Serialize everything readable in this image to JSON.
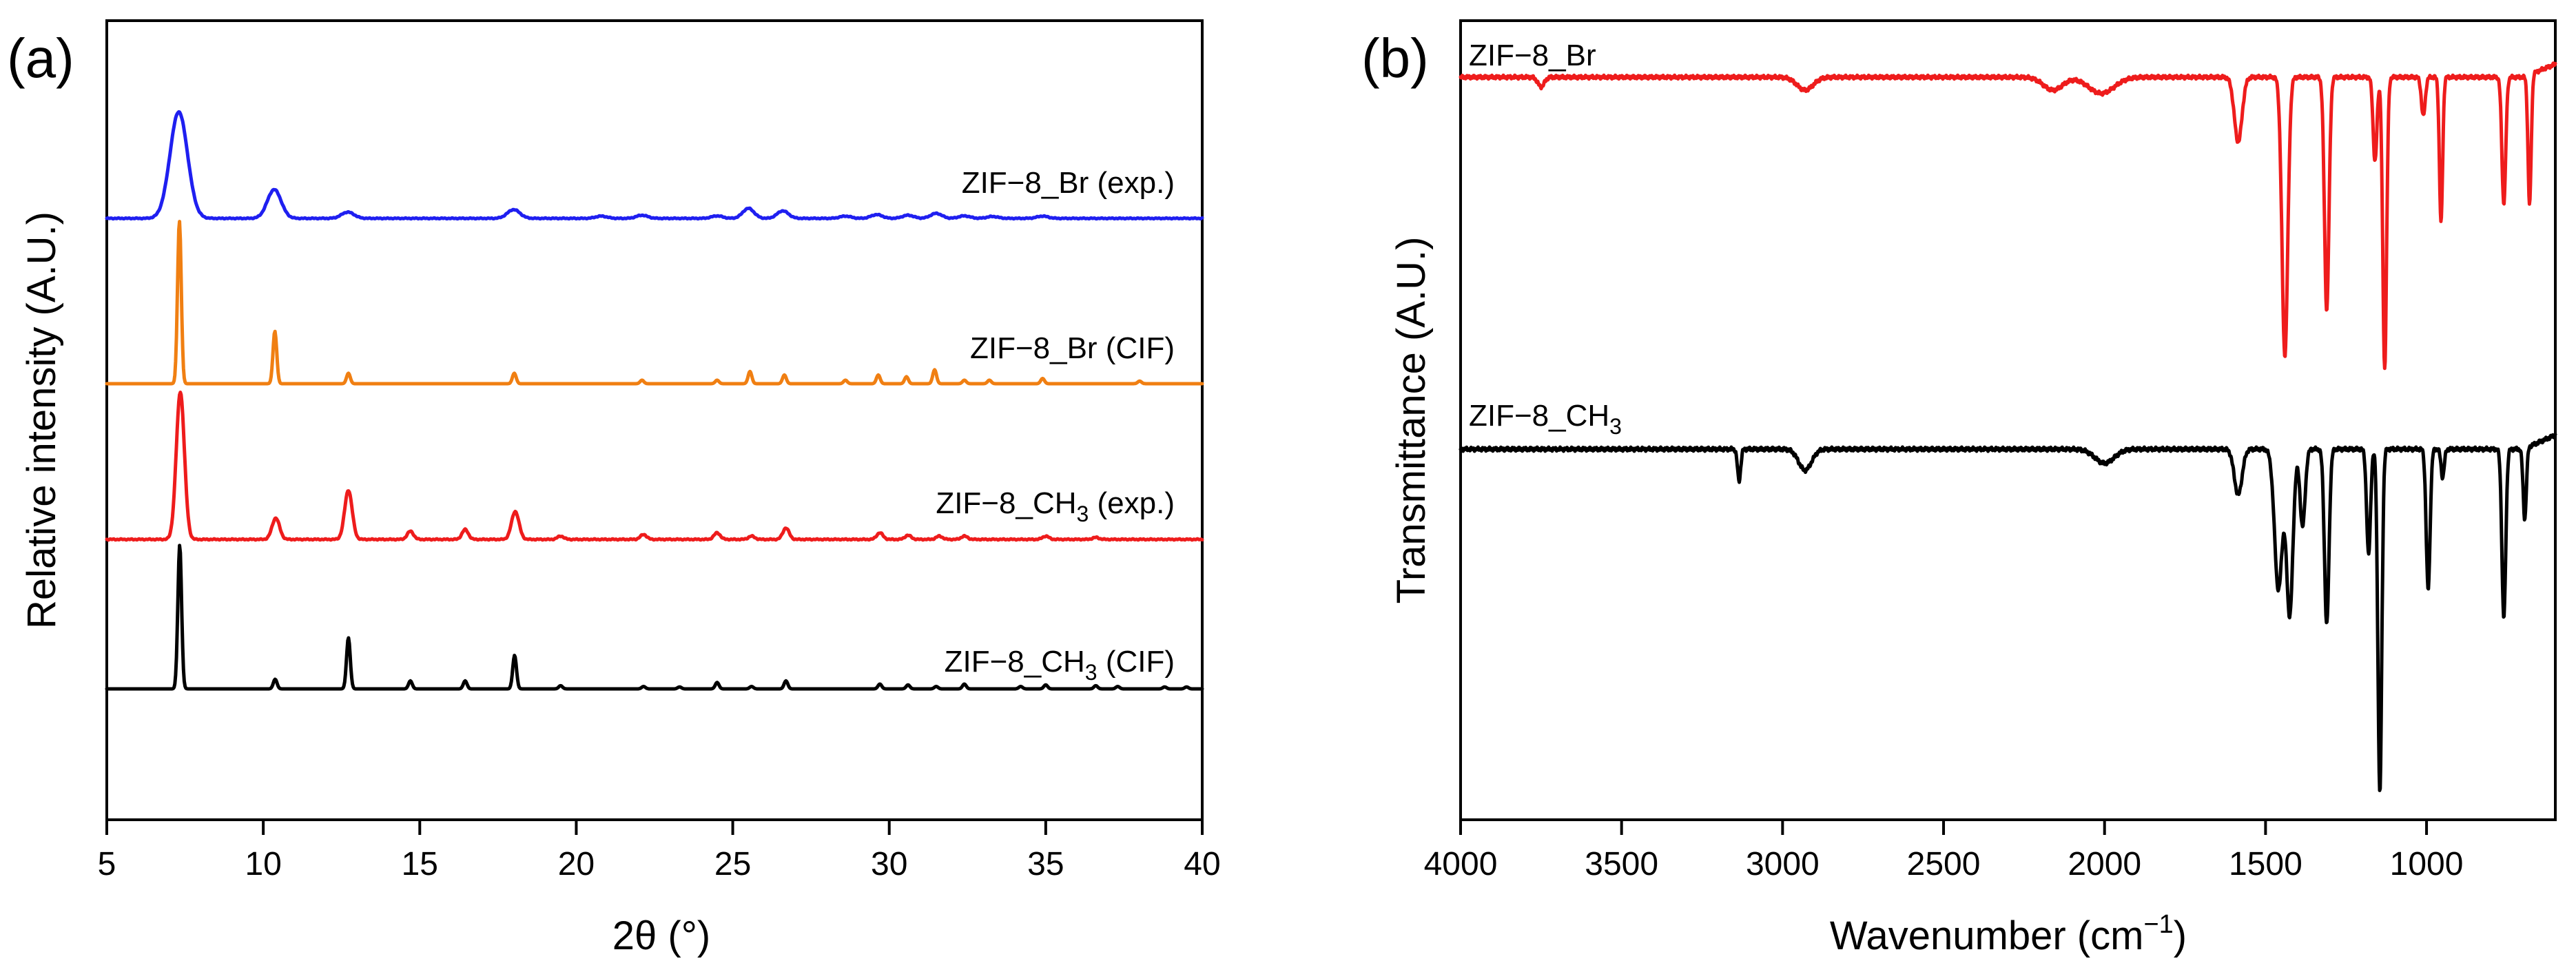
{
  "chart_data": [
    {
      "type": "line",
      "panel_label": "(a)",
      "xlabel_symbol": "2θ",
      "xlabel_unit": "(°)",
      "ylabel": "Relative intensity (A.U.)",
      "xlim": [
        5,
        40
      ],
      "x_ticks": [
        5,
        10,
        15,
        20,
        25,
        30,
        35,
        40
      ],
      "y_ticks_shown": false,
      "series": [
        {
          "name": "ZIF-8_Br (exp.)",
          "label_base": "ZIF−8_Br (exp.)",
          "label_sub": "",
          "label_tail": "",
          "color": "#1f1ff0",
          "offset": 3.0,
          "baseline": 0.0,
          "peaks": [
            {
              "x": 7.3,
              "h": 0.85,
              "w": 0.28
            },
            {
              "x": 10.35,
              "h": 0.23,
              "w": 0.22
            },
            {
              "x": 12.7,
              "h": 0.05,
              "w": 0.2
            },
            {
              "x": 18.0,
              "h": 0.07,
              "w": 0.2
            },
            {
              "x": 20.8,
              "h": 0.018,
              "w": 0.18
            },
            {
              "x": 22.1,
              "h": 0.025,
              "w": 0.18
            },
            {
              "x": 24.5,
              "h": 0.02,
              "w": 0.18
            },
            {
              "x": 25.5,
              "h": 0.08,
              "w": 0.18
            },
            {
              "x": 26.6,
              "h": 0.06,
              "w": 0.18
            },
            {
              "x": 28.6,
              "h": 0.018,
              "w": 0.18
            },
            {
              "x": 29.6,
              "h": 0.03,
              "w": 0.18
            },
            {
              "x": 30.6,
              "h": 0.025,
              "w": 0.18
            },
            {
              "x": 31.5,
              "h": 0.04,
              "w": 0.18
            },
            {
              "x": 32.4,
              "h": 0.02,
              "w": 0.18
            },
            {
              "x": 33.3,
              "h": 0.015,
              "w": 0.18
            },
            {
              "x": 34.9,
              "h": 0.018,
              "w": 0.18
            }
          ]
        },
        {
          "name": "ZIF-8_Br (CIF)",
          "label_base": "ZIF−8_Br (CIF)",
          "label_sub": "",
          "label_tail": "",
          "color": "#f07f12",
          "offset": 2.0,
          "baseline": 0.0,
          "peaks": [
            {
              "x": 7.32,
              "h": 0.93,
              "w": 0.06
            },
            {
              "x": 10.37,
              "h": 0.3,
              "w": 0.06
            },
            {
              "x": 12.72,
              "h": 0.06,
              "w": 0.06
            },
            {
              "x": 18.02,
              "h": 0.06,
              "w": 0.06
            },
            {
              "x": 22.1,
              "h": 0.02,
              "w": 0.06
            },
            {
              "x": 24.5,
              "h": 0.02,
              "w": 0.06
            },
            {
              "x": 25.55,
              "h": 0.07,
              "w": 0.06
            },
            {
              "x": 26.65,
              "h": 0.05,
              "w": 0.06
            },
            {
              "x": 28.6,
              "h": 0.02,
              "w": 0.06
            },
            {
              "x": 29.65,
              "h": 0.05,
              "w": 0.06
            },
            {
              "x": 30.55,
              "h": 0.04,
              "w": 0.06
            },
            {
              "x": 31.45,
              "h": 0.08,
              "w": 0.06
            },
            {
              "x": 32.4,
              "h": 0.02,
              "w": 0.06
            },
            {
              "x": 33.2,
              "h": 0.02,
              "w": 0.06
            },
            {
              "x": 34.9,
              "h": 0.03,
              "w": 0.06
            },
            {
              "x": 38.0,
              "h": 0.015,
              "w": 0.06
            }
          ]
        },
        {
          "name": "ZIF-8_CH3 (exp.)",
          "label_base": "ZIF−8_CH",
          "label_sub": "3",
          "label_tail": " (exp.)",
          "color": "#ee1c1c",
          "offset": 1.0,
          "baseline": 0.0,
          "peaks": [
            {
              "x": 7.35,
              "h": 0.9,
              "w": 0.13
            },
            {
              "x": 10.4,
              "h": 0.13,
              "w": 0.12
            },
            {
              "x": 12.72,
              "h": 0.3,
              "w": 0.12
            },
            {
              "x": 14.7,
              "h": 0.05,
              "w": 0.1
            },
            {
              "x": 16.45,
              "h": 0.06,
              "w": 0.1
            },
            {
              "x": 18.05,
              "h": 0.17,
              "w": 0.12
            },
            {
              "x": 19.5,
              "h": 0.02,
              "w": 0.1
            },
            {
              "x": 22.15,
              "h": 0.03,
              "w": 0.1
            },
            {
              "x": 24.5,
              "h": 0.04,
              "w": 0.1
            },
            {
              "x": 25.6,
              "h": 0.02,
              "w": 0.1
            },
            {
              "x": 26.7,
              "h": 0.07,
              "w": 0.1
            },
            {
              "x": 29.7,
              "h": 0.04,
              "w": 0.1
            },
            {
              "x": 30.6,
              "h": 0.025,
              "w": 0.1
            },
            {
              "x": 31.6,
              "h": 0.02,
              "w": 0.1
            },
            {
              "x": 32.4,
              "h": 0.02,
              "w": 0.1
            },
            {
              "x": 35.0,
              "h": 0.02,
              "w": 0.1
            },
            {
              "x": 36.6,
              "h": 0.012,
              "w": 0.1
            }
          ]
        },
        {
          "name": "ZIF-8_CH3 (CIF)",
          "label_base": "ZIF−8_CH",
          "label_sub": "3",
          "label_tail": " (CIF)",
          "color": "#000000",
          "offset": 0.0,
          "baseline": 0.0,
          "peaks": [
            {
              "x": 7.33,
              "h": 0.9,
              "w": 0.06
            },
            {
              "x": 10.38,
              "h": 0.06,
              "w": 0.06
            },
            {
              "x": 12.72,
              "h": 0.32,
              "w": 0.06
            },
            {
              "x": 14.7,
              "h": 0.05,
              "w": 0.06
            },
            {
              "x": 16.45,
              "h": 0.05,
              "w": 0.06
            },
            {
              "x": 18.03,
              "h": 0.21,
              "w": 0.06
            },
            {
              "x": 19.5,
              "h": 0.02,
              "w": 0.06
            },
            {
              "x": 22.15,
              "h": 0.015,
              "w": 0.06
            },
            {
              "x": 23.3,
              "h": 0.012,
              "w": 0.06
            },
            {
              "x": 24.5,
              "h": 0.04,
              "w": 0.06
            },
            {
              "x": 25.6,
              "h": 0.015,
              "w": 0.06
            },
            {
              "x": 26.7,
              "h": 0.05,
              "w": 0.06
            },
            {
              "x": 29.7,
              "h": 0.03,
              "w": 0.06
            },
            {
              "x": 30.6,
              "h": 0.025,
              "w": 0.06
            },
            {
              "x": 31.5,
              "h": 0.015,
              "w": 0.06
            },
            {
              "x": 32.4,
              "h": 0.03,
              "w": 0.06
            },
            {
              "x": 34.2,
              "h": 0.015,
              "w": 0.06
            },
            {
              "x": 35.0,
              "h": 0.025,
              "w": 0.06
            },
            {
              "x": 36.6,
              "h": 0.02,
              "w": 0.06
            },
            {
              "x": 37.3,
              "h": 0.015,
              "w": 0.06
            },
            {
              "x": 38.8,
              "h": 0.012,
              "w": 0.06
            },
            {
              "x": 39.5,
              "h": 0.012,
              "w": 0.06
            }
          ]
        }
      ]
    },
    {
      "type": "line",
      "panel_label": "(b)",
      "xlabel_main": "Wavenumber (cm",
      "xlabel_sup": "−1",
      "xlabel_tail": ")",
      "ylabel": "Transmittance (A.U.)",
      "xlim": [
        4000,
        600
      ],
      "x_ticks": [
        4000,
        3500,
        3000,
        2500,
        2000,
        1500,
        1000
      ],
      "y_ticks_shown": false,
      "series": [
        {
          "name": "ZIF-8_Br",
          "label_base": "ZIF−8_Br",
          "label_sub": "",
          "label_tail": "",
          "color": "#ee1c1c",
          "offset": 1.0,
          "baseline": 0.0,
          "peaks": [
            {
              "x": 3750,
              "d": 0.03,
              "w": 10
            },
            {
              "x": 2930,
              "d": 0.04,
              "w": 25
            },
            {
              "x": 2160,
              "d": 0.04,
              "w": 30
            },
            {
              "x": 2010,
              "d": 0.05,
              "w": 40
            },
            {
              "x": 1585,
              "d": 0.2,
              "w": 12
            },
            {
              "x": 1440,
              "d": 0.86,
              "w": 9
            },
            {
              "x": 1310,
              "d": 0.72,
              "w": 7
            },
            {
              "x": 1160,
              "d": 0.26,
              "w": 6
            },
            {
              "x": 1130,
              "d": 0.9,
              "w": 6
            },
            {
              "x": 1010,
              "d": 0.12,
              "w": 6
            },
            {
              "x": 955,
              "d": 0.45,
              "w": 5
            },
            {
              "x": 760,
              "d": 0.39,
              "w": 6
            },
            {
              "x": 680,
              "d": 0.4,
              "w": 5
            }
          ]
        },
        {
          "name": "ZIF-8_CH3",
          "label_base": "ZIF−8_CH",
          "label_sub": "3",
          "label_tail": "",
          "color": "#000000",
          "offset": 0.0,
          "baseline": 0.0,
          "peaks": [
            {
              "x": 3135,
              "d": 0.09,
              "w": 5
            },
            {
              "x": 2930,
              "d": 0.06,
              "w": 20
            },
            {
              "x": 2000,
              "d": 0.04,
              "w": 30
            },
            {
              "x": 1585,
              "d": 0.13,
              "w": 12
            },
            {
              "x": 1460,
              "d": 0.4,
              "w": 12
            },
            {
              "x": 1425,
              "d": 0.47,
              "w": 10
            },
            {
              "x": 1385,
              "d": 0.22,
              "w": 8
            },
            {
              "x": 1310,
              "d": 0.5,
              "w": 7
            },
            {
              "x": 1180,
              "d": 0.3,
              "w": 6
            },
            {
              "x": 1145,
              "d": 0.98,
              "w": 6
            },
            {
              "x": 995,
              "d": 0.4,
              "w": 6
            },
            {
              "x": 950,
              "d": 0.08,
              "w": 5
            },
            {
              "x": 760,
              "d": 0.48,
              "w": 6
            },
            {
              "x": 695,
              "d": 0.2,
              "w": 5
            }
          ]
        }
      ]
    }
  ]
}
